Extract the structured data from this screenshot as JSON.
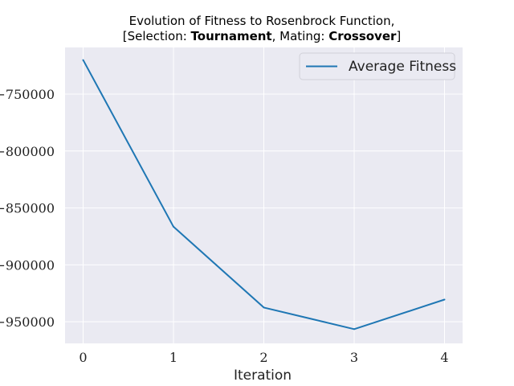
{
  "chart_data": {
    "type": "line",
    "title": {
      "line1": "Evolution of Fitness to Rosenbrock Function,",
      "line2_parts": [
        {
          "text": "[Selection: ",
          "bold": false
        },
        {
          "text": "Tournament",
          "bold": true
        },
        {
          "text": ", Mating: ",
          "bold": false
        },
        {
          "text": "Crossover",
          "bold": true
        },
        {
          "text": "]",
          "bold": false
        }
      ]
    },
    "xlabel": "Iteration",
    "ylabel": "",
    "x": [
      0,
      1,
      2,
      3,
      4
    ],
    "xticks": [
      "0",
      "1",
      "2",
      "3",
      "4"
    ],
    "xlim": [
      -0.2,
      4.2
    ],
    "ylim": [
      -969000,
      -709000
    ],
    "yticks": [
      -750000,
      -800000,
      -850000,
      -900000,
      -950000
    ],
    "ytick_labels": [
      "−750000",
      "−800000",
      "−850000",
      "−900000",
      "−950000"
    ],
    "series": [
      {
        "name": "Average Fitness",
        "color": "#1f77b4",
        "values": [
          -720000,
          -866500,
          -937500,
          -956500,
          -930500
        ]
      }
    ],
    "legend_position": "top-right",
    "grid": true,
    "background_color": "#eaeaf2",
    "grid_color": "#ffffff"
  }
}
